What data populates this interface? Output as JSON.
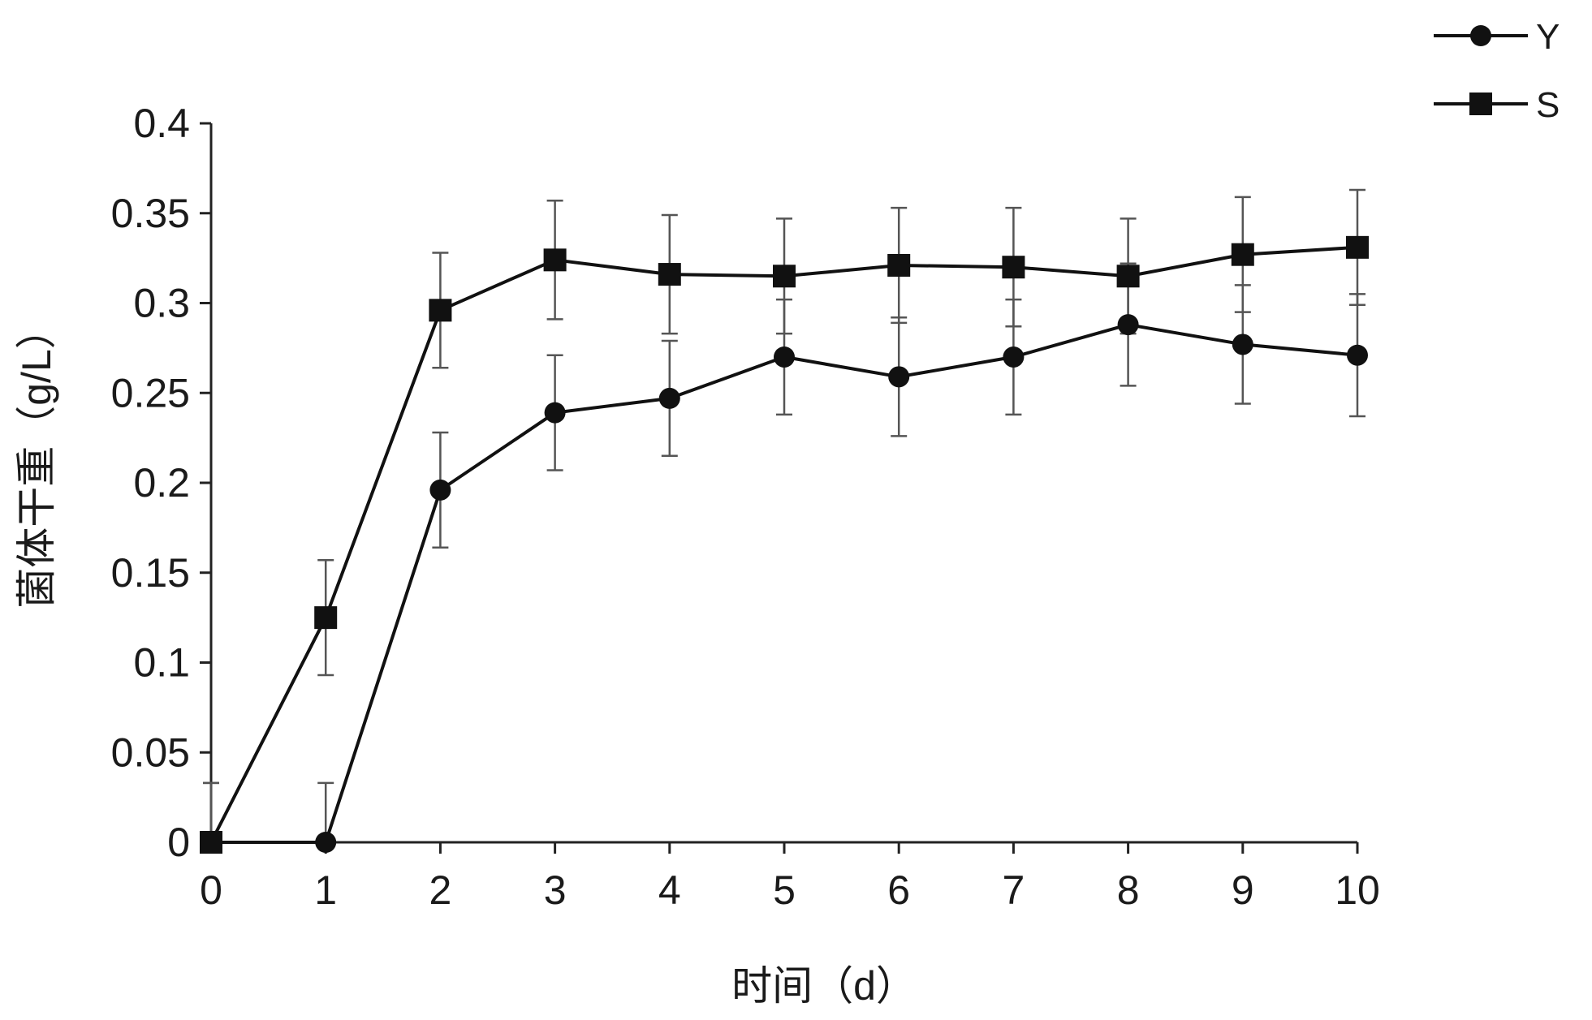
{
  "chart_data": {
    "type": "line",
    "title": "",
    "xlabel": "时间（d）",
    "ylabel": "菌体干重（g/L）",
    "x": [
      0,
      1,
      2,
      3,
      4,
      5,
      6,
      7,
      8,
      9,
      10
    ],
    "xlim": [
      0,
      10
    ],
    "ylim": [
      0,
      0.4
    ],
    "x_ticks": [
      "0",
      "1",
      "2",
      "3",
      "4",
      "5",
      "6",
      "7",
      "8",
      "9",
      "10"
    ],
    "y_ticks": [
      "0",
      "0.05",
      "0.1",
      "0.15",
      "0.2",
      "0.25",
      "0.3",
      "0.35",
      "0.4"
    ],
    "grid": false,
    "legend_position": "top-right",
    "series": [
      {
        "name": "Y",
        "marker": "circle",
        "color": "#111111",
        "values": [
          0,
          0,
          0.196,
          0.239,
          0.247,
          0.27,
          0.259,
          0.27,
          0.288,
          0.277,
          0.271
        ],
        "error": [
          0.033,
          0.033,
          0.032,
          0.032,
          0.032,
          0.032,
          0.033,
          0.032,
          0.034,
          0.033,
          0.034
        ]
      },
      {
        "name": "S",
        "marker": "square",
        "color": "#111111",
        "values": [
          0,
          0.125,
          0.296,
          0.324,
          0.316,
          0.315,
          0.321,
          0.32,
          0.315,
          0.327,
          0.331
        ],
        "error": [
          0.033,
          0.032,
          0.032,
          0.033,
          0.033,
          0.032,
          0.032,
          0.033,
          0.032,
          0.032,
          0.032
        ]
      }
    ]
  }
}
